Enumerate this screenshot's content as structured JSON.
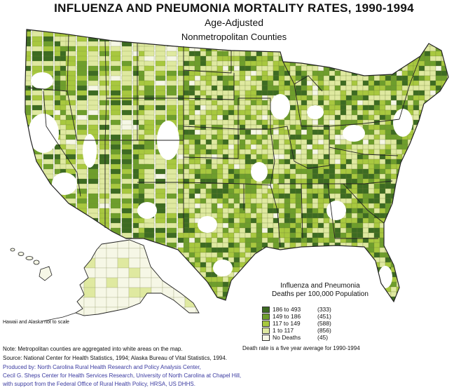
{
  "header": {
    "title": "INFLUENZA AND PNEUMONIA MORTALITY RATES, 1990-1994",
    "subtitle": "Age-Adjusted",
    "subtitle2": "Nonmetropolitan Counties"
  },
  "map_note": "Hawaii and Alaska not to scale",
  "legend": {
    "title_line1": "Influenza and Pneumonia",
    "title_line2": "Deaths per 100,000 Population",
    "classes": [
      {
        "range": "186 to 493",
        "count": "(333)",
        "color": "#3d6b22"
      },
      {
        "range": "149 to 186",
        "count": "(451)",
        "color": "#6e9e2c"
      },
      {
        "range": "117 to 149",
        "count": "(588)",
        "color": "#a8c83f"
      },
      {
        "range": "1 to 117",
        "count": "(856)",
        "color": "#dfe9a0"
      },
      {
        "range": "No Deaths",
        "count": "(45)",
        "color": "#f6f7e6"
      }
    ],
    "metro_color": "#ffffff",
    "state_line_color": "#222222"
  },
  "death_note": "Death rate is a five year average for 1990-1994",
  "footnotes": {
    "note": "Note: Metropolitan counties are aggregated into white areas on the map.",
    "source": "Source: National Center for Health Statistics, 1994; Alaska Bureau of Vital Statistics, 1994.",
    "produced_by": "Produced by: North Carolina Rural Health Research and Policy Analysis Center,",
    "sheps": "Cecil G. Sheps Center for Health Services Research, University of North Carolina at Chapel Hill,",
    "support": "with support from the Federal Office of Rural Health Policy, HRSA, US DHHS."
  }
}
